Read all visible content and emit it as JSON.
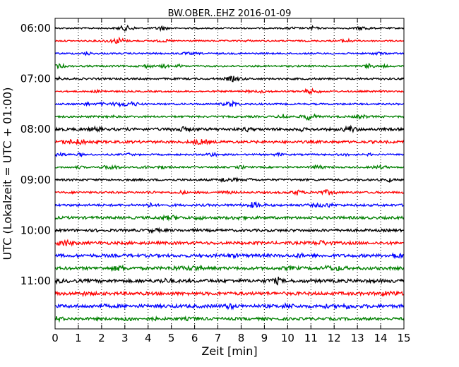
{
  "chart_data": {
    "type": "line",
    "title": "BW.OBER..EHZ 2016-01-09",
    "xlabel": "Zeit  [min]",
    "ylabel": "UTC (Lokalzeit = UTC + 01:00)",
    "xlim": [
      0,
      15
    ],
    "x_ticks": [
      "0",
      "1",
      "2",
      "3",
      "4",
      "5",
      "6",
      "7",
      "8",
      "9",
      "10",
      "11",
      "12",
      "13",
      "14",
      "15"
    ],
    "y_ticks": [
      {
        "time": "06:00",
        "trace": 0
      },
      {
        "time": "07:00",
        "trace": 4
      },
      {
        "time": "08:00",
        "trace": 8
      },
      {
        "time": "09:00",
        "trace": 12
      },
      {
        "time": "10:00",
        "trace": 16
      },
      {
        "time": "11:00",
        "trace": 20
      }
    ],
    "grid": "vertical dotted",
    "trace_colors": [
      "#000000",
      "#ff0000",
      "#0000ff",
      "#008000"
    ],
    "traces": [
      {
        "start": "06:00",
        "amplitude": 1.0
      },
      {
        "start": "06:15",
        "amplitude": 1.0
      },
      {
        "start": "06:30",
        "amplitude": 1.1
      },
      {
        "start": "06:45",
        "amplitude": 1.2
      },
      {
        "start": "07:00",
        "amplitude": 1.3
      },
      {
        "start": "07:15",
        "amplitude": 1.1
      },
      {
        "start": "07:30",
        "amplitude": 1.2
      },
      {
        "start": "07:45",
        "amplitude": 1.3
      },
      {
        "start": "08:00",
        "amplitude": 1.9
      },
      {
        "start": "08:15",
        "amplitude": 1.8
      },
      {
        "start": "08:30",
        "amplitude": 1.1
      },
      {
        "start": "08:45",
        "amplitude": 1.1
      },
      {
        "start": "09:00",
        "amplitude": 1.4
      },
      {
        "start": "09:15",
        "amplitude": 1.4
      },
      {
        "start": "09:30",
        "amplitude": 1.6
      },
      {
        "start": "09:45",
        "amplitude": 1.8
      },
      {
        "start": "10:00",
        "amplitude": 1.8
      },
      {
        "start": "10:15",
        "amplitude": 2.0
      },
      {
        "start": "10:30",
        "amplitude": 2.1
      },
      {
        "start": "10:45",
        "amplitude": 2.1
      },
      {
        "start": "11:00",
        "amplitude": 2.3
      },
      {
        "start": "11:15",
        "amplitude": 2.2
      },
      {
        "start": "11:30",
        "amplitude": 2.3
      },
      {
        "start": "11:45",
        "amplitude": 1.9
      }
    ]
  }
}
